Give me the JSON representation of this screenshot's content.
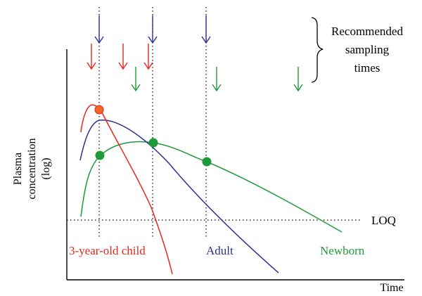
{
  "annotation": {
    "bracket_lines": [
      "Recommended",
      "sampling",
      "times"
    ]
  },
  "axes": {
    "ylabel_lines": [
      "Plasma",
      "concentration",
      "(log)"
    ],
    "xlabel": "Time"
  },
  "loq_label": "LOQ",
  "curves": [
    {
      "key": "child",
      "label": "3-year-old child",
      "color": "#e8271b"
    },
    {
      "key": "adult",
      "label": "Adult",
      "color": "#2e3192"
    },
    {
      "key": "newborn",
      "label": "Newborn",
      "color": "#1f9a3a"
    }
  ],
  "colors": {
    "child": "#e8271b",
    "adult": "#2e3192",
    "newborn": "#1f9a3a",
    "child_marker": "#f26522",
    "axis": "#000000"
  }
}
